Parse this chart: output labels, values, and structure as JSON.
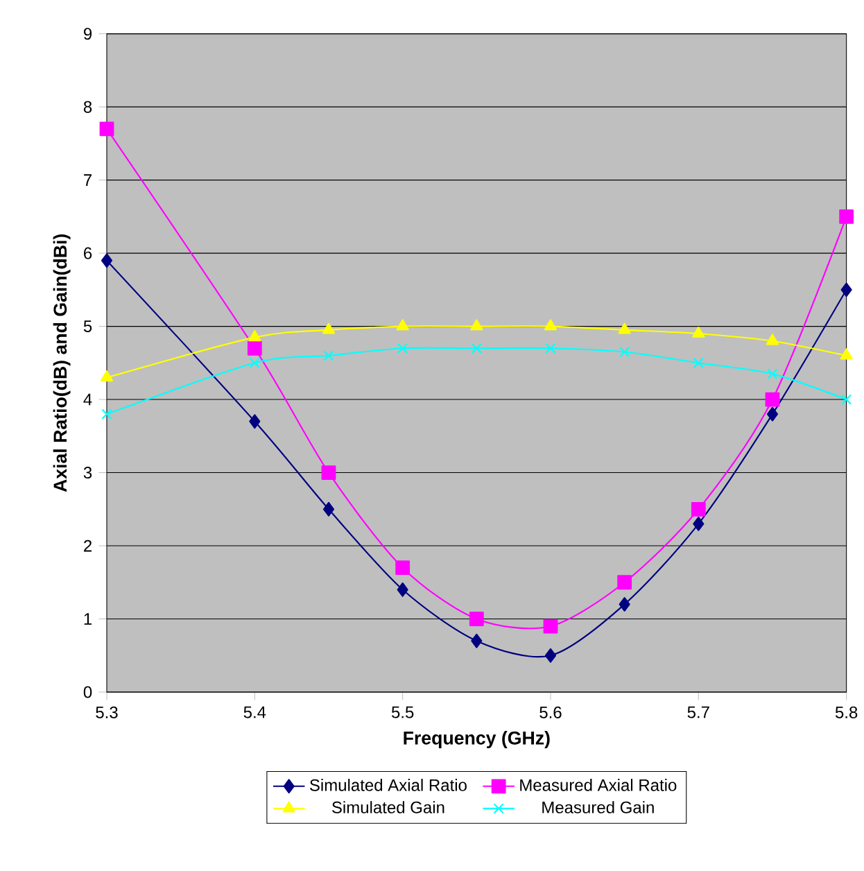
{
  "chart_data": {
    "type": "line",
    "xlabel": "Frequency (GHz)",
    "ylabel": "Axial Ratio(dB) and Gain(dBi)",
    "x": [
      5.3,
      5.4,
      5.45,
      5.5,
      5.55,
      5.6,
      5.65,
      5.7,
      5.75,
      5.8
    ],
    "series": [
      {
        "name": "Simulated Axial Ratio",
        "color": "#000080",
        "marker": "diamond",
        "values": [
          5.9,
          3.7,
          2.5,
          1.4,
          0.7,
          0.5,
          1.2,
          2.3,
          3.8,
          5.5
        ]
      },
      {
        "name": "Measured Axial Ratio",
        "color": "#ff00ff",
        "marker": "square",
        "values": [
          7.7,
          4.7,
          3.0,
          1.7,
          1.0,
          0.9,
          1.5,
          2.5,
          4.0,
          6.5
        ]
      },
      {
        "name": "Simulated Gain",
        "color": "#ffff00",
        "marker": "triangle",
        "values": [
          4.3,
          4.85,
          4.95,
          5.0,
          5.0,
          5.0,
          4.95,
          4.9,
          4.8,
          4.6
        ]
      },
      {
        "name": "Measured Gain",
        "color": "#00ffff",
        "marker": "cross",
        "values": [
          3.8,
          4.5,
          4.6,
          4.7,
          4.7,
          4.7,
          4.65,
          4.5,
          4.35,
          4.0
        ]
      }
    ],
    "xlim": [
      5.3,
      5.8
    ],
    "xticks": [
      5.3,
      5.4,
      5.5,
      5.6,
      5.7,
      5.8
    ],
    "ylim": [
      0,
      9
    ],
    "yticks": [
      0,
      1,
      2,
      3,
      4,
      5,
      6,
      7,
      8,
      9
    ],
    "grid": "y",
    "legend": "bottom"
  }
}
